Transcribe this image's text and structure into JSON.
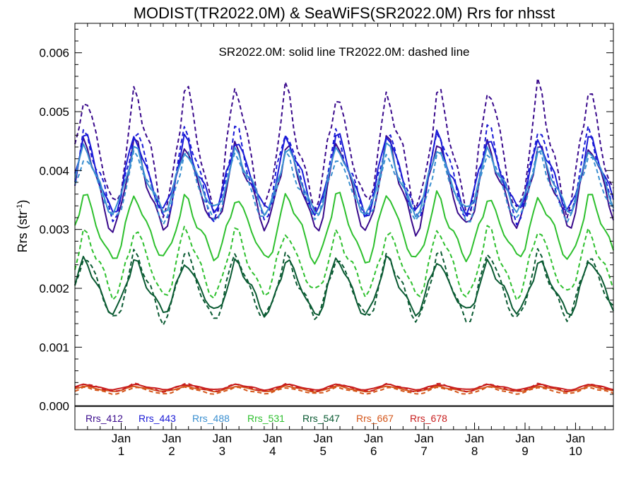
{
  "chart_data": {
    "type": "line",
    "title": "MODIST(TR2022.0M) & SeaWiFS(SR2022.0M)  Rrs for nhsst",
    "annotation": "SR2022.0M: solid line   TR2022.0M: dashed line",
    "ylabel": "Rrs (str",
    "ylabel_sup": "-1",
    "ylabel_close": ")",
    "ylim": [
      -0.0004,
      0.0065
    ],
    "xlim": [
      0,
      128
    ],
    "yticks": [
      {
        "value": 0.0,
        "label": "0.000"
      },
      {
        "value": 0.001,
        "label": "0.001"
      },
      {
        "value": 0.002,
        "label": "0.002"
      },
      {
        "value": 0.003,
        "label": "0.003"
      },
      {
        "value": 0.004,
        "label": "0.004"
      },
      {
        "value": 0.005,
        "label": "0.005"
      },
      {
        "value": 0.006,
        "label": "0.006"
      }
    ],
    "xticks": [
      {
        "month": 11,
        "line1": "Jan",
        "line2": "1"
      },
      {
        "month": 23,
        "line1": "Jan",
        "line2": "2"
      },
      {
        "month": 35,
        "line1": "Jan",
        "line2": "3"
      },
      {
        "month": 47,
        "line1": "Jan",
        "line2": "4"
      },
      {
        "month": 59,
        "line1": "Jan",
        "line2": "5"
      },
      {
        "month": 71,
        "line1": "Jan",
        "line2": "6"
      },
      {
        "month": 83,
        "line1": "Jan",
        "line2": "7"
      },
      {
        "month": 95,
        "line1": "Jan",
        "line2": "8"
      },
      {
        "month": 107,
        "line1": "Jan",
        "line2": "9"
      },
      {
        "month": 119,
        "line1": "Jan",
        "line2": "10"
      }
    ],
    "series": [
      {
        "name": "Rrs_412",
        "color": "#3a0a8c",
        "solid": {
          "base": 0.0037,
          "amp": 0.0008
        },
        "dashed": {
          "base": 0.0043,
          "amp": 0.0011
        }
      },
      {
        "name": "Rrs_443",
        "color": "#1a1ad6",
        "solid": {
          "base": 0.0039,
          "amp": 0.0007
        },
        "dashed": {
          "base": 0.0039,
          "amp": 0.0008
        }
      },
      {
        "name": "Rrs_488",
        "color": "#3a8fd0",
        "solid": {
          "base": 0.0038,
          "amp": 0.0006
        },
        "dashed": {
          "base": 0.0037,
          "amp": 0.0006
        }
      },
      {
        "name": "Rrs_531",
        "color": "#2ec02e",
        "solid": {
          "base": 0.003,
          "amp": 0.0006
        },
        "dashed": {
          "base": 0.0024,
          "amp": 0.0006
        }
      },
      {
        "name": "Rrs_547",
        "color": "#0a5a32",
        "solid": {
          "base": 0.002,
          "amp": 0.0005
        },
        "dashed": {
          "base": 0.002,
          "amp": 0.0006
        }
      },
      {
        "name": "Rrs_667",
        "color": "#d4561a",
        "solid": {
          "base": 0.00029,
          "amp": 5e-05
        },
        "dashed": {
          "base": 0.00026,
          "amp": 6e-05
        }
      },
      {
        "name": "Rrs_678",
        "color": "#c81e1e",
        "solid": {
          "base": 0.00032,
          "amp": 5e-05
        },
        "dashed": {
          "base": 0.00031,
          "amp": 7e-05
        }
      }
    ]
  }
}
